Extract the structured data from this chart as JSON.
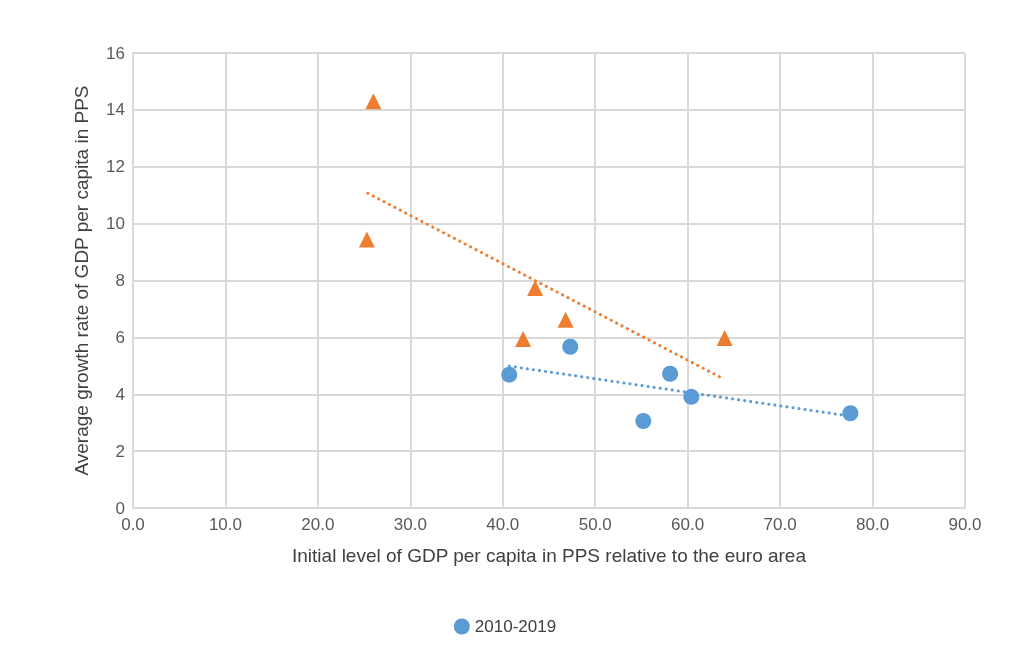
{
  "chart_data": {
    "type": "scatter",
    "xlabel": "Initial level of GDP per capita in PPS relative to the euro area",
    "ylabel": "Average growth rate of GDP per capita in PPS",
    "xlim": [
      0,
      90
    ],
    "xticks": [
      {
        "value": 0,
        "label": "0.0"
      },
      {
        "value": 10,
        "label": "10.0"
      },
      {
        "value": 20,
        "label": "20.0"
      },
      {
        "value": 30,
        "label": "30.0"
      },
      {
        "value": 40,
        "label": "40.0"
      },
      {
        "value": 50,
        "label": "50.0"
      },
      {
        "value": 60,
        "label": "60.0"
      },
      {
        "value": 70,
        "label": "70.0"
      },
      {
        "value": 80,
        "label": "80.0"
      },
      {
        "value": 90,
        "label": "90.0"
      }
    ],
    "ylim": [
      0,
      16
    ],
    "yticks": [
      0,
      2,
      4,
      6,
      8,
      10,
      12,
      14,
      16
    ],
    "grid": true,
    "legend": "bottom",
    "series": [
      {
        "name": "2010-2019",
        "marker": "circle",
        "color": "#5b9bd5",
        "x": [
          40.7,
          47.3,
          55.2,
          58.1,
          60.4,
          77.6
        ],
        "values": [
          4.69,
          5.67,
          3.06,
          4.72,
          3.91,
          3.33
        ]
      },
      {
        "marker": "triangle",
        "color": "#ed7d31",
        "x": [
          26.0,
          25.3,
          43.5,
          46.8,
          42.2,
          64.0
        ],
        "values": [
          14.3,
          9.44,
          7.74,
          6.62,
          5.94,
          5.98
        ]
      },
      {
        "type": "line",
        "line_style": "dotted",
        "marker": "none",
        "color": "#ed7d31",
        "x": [
          25.4,
          64.0
        ],
        "values": [
          11.07,
          4.52
        ]
      },
      {
        "type": "line",
        "line_style": "dotted",
        "marker": "none",
        "color": "#5b9bd5",
        "x": [
          40.7,
          77.6
        ],
        "values": [
          4.99,
          3.23
        ]
      }
    ]
  }
}
